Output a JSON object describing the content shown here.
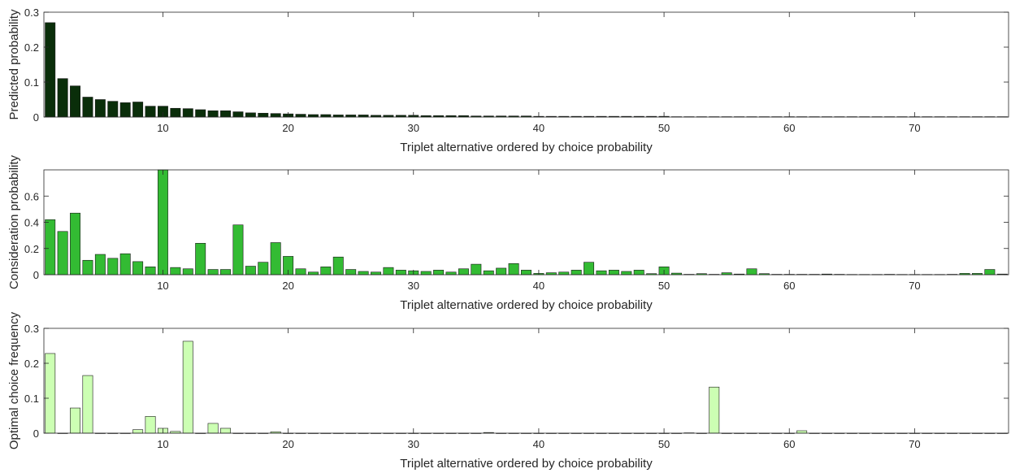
{
  "chart_data": [
    {
      "type": "bar",
      "ylabel": "Predicted probability",
      "xlabel": "Triplet alternative ordered by choice probability",
      "xlim": [
        0.5,
        77.5
      ],
      "ylim": [
        0,
        0.3
      ],
      "xticks": [
        10,
        20,
        30,
        40,
        50,
        60,
        70
      ],
      "yticks": [
        0,
        0.1,
        0.2,
        0.3
      ],
      "ytick_labels": [
        "0",
        "0.1",
        "0.2",
        "0.3"
      ],
      "grid": false,
      "bar_color": "#0a2e0a",
      "x": [
        1,
        2,
        3,
        4,
        5,
        6,
        7,
        8,
        9,
        10,
        11,
        12,
        13,
        14,
        15,
        16,
        17,
        18,
        19,
        20,
        21,
        22,
        23,
        24,
        25,
        26,
        27,
        28,
        29,
        30,
        31,
        32,
        33,
        34,
        35,
        36,
        37,
        38,
        39,
        40,
        41,
        42,
        43,
        44,
        45,
        46,
        47,
        48,
        49,
        50,
        51,
        52,
        53,
        54,
        55,
        56,
        57,
        58,
        59,
        60,
        61,
        62,
        63,
        64,
        65,
        66,
        67,
        68,
        69,
        70,
        71,
        72,
        73,
        74,
        75,
        76,
        77
      ],
      "values": [
        0.27,
        0.11,
        0.089,
        0.057,
        0.05,
        0.045,
        0.041,
        0.043,
        0.031,
        0.031,
        0.025,
        0.024,
        0.021,
        0.018,
        0.018,
        0.015,
        0.012,
        0.011,
        0.01,
        0.009,
        0.008,
        0.007,
        0.007,
        0.006,
        0.006,
        0.006,
        0.005,
        0.005,
        0.005,
        0.005,
        0.004,
        0.004,
        0.004,
        0.004,
        0.003,
        0.003,
        0.003,
        0.003,
        0.003,
        0.002,
        0.002,
        0.002,
        0.002,
        0.002,
        0.002,
        0.002,
        0.002,
        0.002,
        0.002,
        0.002,
        0.001,
        0.001,
        0.001,
        0.001,
        0.001,
        0.001,
        0.001,
        0.001,
        0.001,
        0.001,
        0.001,
        0.001,
        0.001,
        0.001,
        0.001,
        0.001,
        0.001,
        0.001,
        0.001,
        0.001,
        0.001,
        0.001,
        0.001,
        0.001,
        0.001,
        0.001,
        0.001
      ]
    },
    {
      "type": "bar",
      "ylabel": "Consideration probability",
      "xlabel": "Triplet alternative ordered by choice probability",
      "xlim": [
        0.5,
        77.5
      ],
      "ylim": [
        0,
        0.8
      ],
      "xticks": [
        10,
        20,
        30,
        40,
        50,
        60,
        70
      ],
      "yticks": [
        0,
        0.2,
        0.4,
        0.6
      ],
      "ytick_labels": [
        "0",
        "0.2",
        "0.4",
        "0.6"
      ],
      "grid": false,
      "bar_color": "#33bb33",
      "x": [
        1,
        2,
        3,
        4,
        5,
        6,
        7,
        8,
        9,
        10,
        11,
        12,
        13,
        14,
        15,
        16,
        17,
        18,
        19,
        20,
        21,
        22,
        23,
        24,
        25,
        26,
        27,
        28,
        29,
        30,
        31,
        32,
        33,
        34,
        35,
        36,
        37,
        38,
        39,
        40,
        41,
        42,
        43,
        44,
        45,
        46,
        47,
        48,
        49,
        50,
        51,
        52,
        53,
        54,
        55,
        56,
        57,
        58,
        59,
        60,
        61,
        62,
        63,
        64,
        65,
        66,
        67,
        68,
        69,
        70,
        71,
        72,
        73,
        74,
        75,
        76,
        77
      ],
      "values": [
        0.42,
        0.33,
        0.47,
        0.11,
        0.155,
        0.125,
        0.16,
        0.1,
        0.06,
        0.8,
        0.055,
        0.045,
        0.24,
        0.04,
        0.04,
        0.38,
        0.065,
        0.095,
        0.245,
        0.14,
        0.045,
        0.02,
        0.06,
        0.135,
        0.04,
        0.025,
        0.02,
        0.055,
        0.035,
        0.03,
        0.025,
        0.035,
        0.02,
        0.045,
        0.08,
        0.03,
        0.05,
        0.085,
        0.035,
        0.01,
        0.015,
        0.02,
        0.035,
        0.095,
        0.03,
        0.035,
        0.025,
        0.035,
        0.008,
        0.06,
        0.012,
        0.003,
        0.008,
        0.003,
        0.015,
        0.005,
        0.045,
        0.008,
        0.003,
        0.003,
        0.003,
        0.003,
        0.005,
        0.003,
        0.002,
        0.002,
        0.002,
        0.003,
        0.002,
        0.002,
        0.002,
        0.002,
        0.003,
        0.01,
        0.01,
        0.04,
        0.005
      ]
    },
    {
      "type": "bar",
      "ylabel": "Optimal choice frequency",
      "xlabel": "Triplet alternative ordered by choice probability",
      "xlim": [
        0.5,
        77.5
      ],
      "ylim": [
        0,
        0.3
      ],
      "xticks": [
        10,
        20,
        30,
        40,
        50,
        60,
        70
      ],
      "yticks": [
        0,
        0.1,
        0.2,
        0.3
      ],
      "ytick_labels": [
        "0",
        "0.1",
        "0.2",
        "0.3"
      ],
      "grid": false,
      "bar_color": "#ccffb3",
      "x": [
        1,
        2,
        3,
        4,
        5,
        6,
        7,
        8,
        9,
        10,
        11,
        12,
        13,
        14,
        15,
        16,
        17,
        18,
        19,
        20,
        21,
        22,
        23,
        24,
        25,
        26,
        27,
        28,
        29,
        30,
        31,
        32,
        33,
        34,
        35,
        36,
        37,
        38,
        39,
        40,
        41,
        42,
        43,
        44,
        45,
        46,
        47,
        48,
        49,
        50,
        51,
        52,
        53,
        54,
        55,
        56,
        57,
        58,
        59,
        60,
        61,
        62,
        63,
        64,
        65,
        66,
        67,
        68,
        69,
        70,
        71,
        72,
        73,
        74,
        75,
        76,
        77
      ],
      "values": [
        0.228,
        0,
        0.072,
        0.165,
        0,
        0,
        0,
        0.01,
        0.048,
        0.014,
        0.005,
        0.263,
        0,
        0.028,
        0.014,
        0,
        0,
        0,
        0.004,
        0,
        0,
        0,
        0,
        0,
        0,
        0,
        0,
        0,
        0,
        0,
        0,
        0,
        0,
        0,
        0,
        0.002,
        0,
        0,
        0,
        0,
        0,
        0,
        0,
        0,
        0,
        0,
        0,
        0,
        0,
        0,
        0,
        0.001,
        0,
        0.132,
        0,
        0,
        0,
        0,
        0,
        0,
        0.007,
        0,
        0,
        0,
        0,
        0,
        0,
        0,
        0,
        0,
        0,
        0,
        0,
        0,
        0,
        0,
        0
      ]
    }
  ]
}
